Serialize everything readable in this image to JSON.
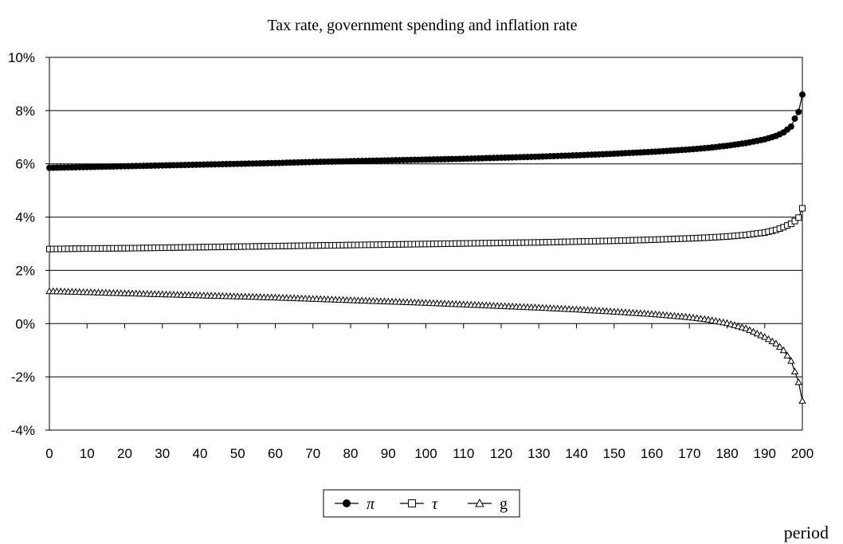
{
  "chart_data": {
    "type": "line",
    "title": "Tax rate, government spending and inflation rate",
    "xlabel": "period",
    "ylabel": "",
    "xlim": [
      0,
      200
    ],
    "ylim": [
      -4,
      10
    ],
    "x_ticks": [
      "0",
      "10",
      "20",
      "30",
      "40",
      "50",
      "60",
      "70",
      "80",
      "90",
      "100",
      "110",
      "120",
      "130",
      "140",
      "150",
      "160",
      "170",
      "180",
      "190",
      "200"
    ],
    "y_ticks": [
      "10%",
      "8%",
      "6%",
      "4%",
      "2%",
      "0%",
      "-2%",
      "-4%"
    ],
    "y_tick_values": [
      10,
      8,
      6,
      4,
      2,
      0,
      -2,
      -4
    ],
    "grid": "horizontal",
    "legend_position": "bottom",
    "series": [
      {
        "name": "π",
        "marker": "filled-circle",
        "x": [
          0,
          10,
          20,
          30,
          40,
          50,
          60,
          70,
          80,
          90,
          100,
          110,
          120,
          130,
          140,
          150,
          160,
          170,
          175,
          180,
          185,
          190,
          193,
          195,
          197,
          198,
          199,
          200
        ],
        "values": [
          5.85,
          5.88,
          5.91,
          5.94,
          5.97,
          6.0,
          6.03,
          6.07,
          6.1,
          6.13,
          6.16,
          6.19,
          6.23,
          6.27,
          6.32,
          6.38,
          6.45,
          6.54,
          6.6,
          6.68,
          6.78,
          6.92,
          7.05,
          7.18,
          7.4,
          7.7,
          7.95,
          8.6
        ]
      },
      {
        "name": "τ",
        "marker": "open-square",
        "x": [
          0,
          10,
          20,
          30,
          40,
          50,
          60,
          70,
          80,
          90,
          100,
          110,
          120,
          130,
          140,
          150,
          160,
          170,
          175,
          180,
          185,
          190,
          193,
          195,
          197,
          198,
          199,
          200
        ],
        "values": [
          2.8,
          2.82,
          2.83,
          2.85,
          2.87,
          2.89,
          2.91,
          2.93,
          2.95,
          2.97,
          2.99,
          3.01,
          3.03,
          3.05,
          3.08,
          3.11,
          3.15,
          3.2,
          3.23,
          3.27,
          3.33,
          3.42,
          3.52,
          3.62,
          3.75,
          3.85,
          3.98,
          4.33
        ]
      },
      {
        "name": "g",
        "marker": "open-triangle",
        "x": [
          0,
          10,
          20,
          30,
          40,
          50,
          60,
          70,
          80,
          90,
          100,
          110,
          120,
          130,
          140,
          150,
          160,
          170,
          175,
          180,
          185,
          190,
          193,
          195,
          197,
          198,
          199,
          200
        ],
        "values": [
          1.22,
          1.18,
          1.14,
          1.1,
          1.06,
          1.02,
          0.98,
          0.93,
          0.88,
          0.83,
          0.78,
          0.72,
          0.66,
          0.6,
          0.53,
          0.45,
          0.36,
          0.24,
          0.15,
          0.02,
          -0.18,
          -0.5,
          -0.75,
          -1.0,
          -1.4,
          -1.8,
          -2.2,
          -2.9
        ]
      }
    ]
  }
}
